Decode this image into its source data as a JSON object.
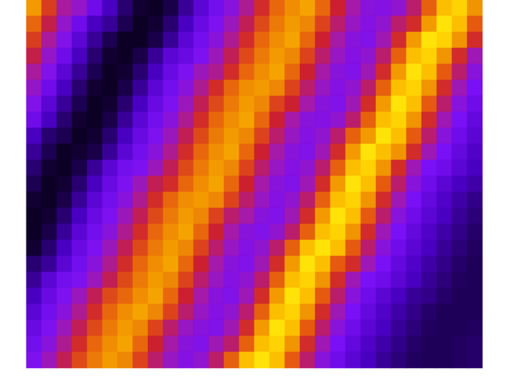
{
  "chart_data": {
    "type": "heatmap",
    "tick_labels": false,
    "color_range": [
      0,
      1
    ],
    "cells": [
      [
        0.8,
        0.65,
        0.51,
        0.45,
        0.35,
        0.25,
        0.15,
        0.07,
        0.05,
        0.1,
        0.2,
        0.3,
        0.36,
        0.42,
        0.52,
        0.62,
        0.72,
        0.78,
        0.82,
        0.72,
        0.6,
        0.5,
        0.42,
        0.41,
        0.44,
        0.55,
        0.71,
        0.88,
        0.92,
        0.79
      ],
      [
        0.72,
        0.58,
        0.45,
        0.35,
        0.25,
        0.2,
        0.11,
        0.05,
        0.07,
        0.15,
        0.25,
        0.33,
        0.39,
        0.47,
        0.57,
        0.67,
        0.75,
        0.8,
        0.77,
        0.66,
        0.55,
        0.46,
        0.41,
        0.44,
        0.55,
        0.62,
        0.8,
        0.95,
        0.88,
        0.7
      ],
      [
        0.65,
        0.51,
        0.4,
        0.3,
        0.2,
        0.11,
        0.05,
        0.05,
        0.1,
        0.2,
        0.3,
        0.36,
        0.42,
        0.52,
        0.62,
        0.72,
        0.78,
        0.82,
        0.72,
        0.6,
        0.5,
        0.42,
        0.4,
        0.48,
        0.62,
        0.8,
        0.95,
        0.92,
        0.79,
        0.62
      ],
      [
        0.58,
        0.45,
        0.35,
        0.25,
        0.15,
        0.07,
        0.05,
        0.1,
        0.2,
        0.3,
        0.33,
        0.39,
        0.47,
        0.57,
        0.67,
        0.75,
        0.8,
        0.77,
        0.66,
        0.55,
        0.46,
        0.41,
        0.44,
        0.55,
        0.71,
        0.88,
        0.92,
        0.79,
        0.62,
        0.48
      ],
      [
        0.51,
        0.4,
        0.3,
        0.2,
        0.11,
        0.05,
        0.07,
        0.15,
        0.25,
        0.33,
        0.39,
        0.47,
        0.52,
        0.62,
        0.72,
        0.78,
        0.82,
        0.72,
        0.6,
        0.5,
        0.42,
        0.4,
        0.48,
        0.62,
        0.8,
        0.95,
        0.88,
        0.7,
        0.55,
        0.42
      ],
      [
        0.45,
        0.35,
        0.25,
        0.15,
        0.07,
        0.05,
        0.1,
        0.2,
        0.3,
        0.36,
        0.42,
        0.52,
        0.62,
        0.72,
        0.78,
        0.8,
        0.77,
        0.66,
        0.55,
        0.46,
        0.41,
        0.44,
        0.55,
        0.71,
        0.88,
        0.92,
        0.79,
        0.62,
        0.48,
        0.38
      ],
      [
        0.4,
        0.3,
        0.2,
        0.11,
        0.05,
        0.07,
        0.15,
        0.25,
        0.33,
        0.39,
        0.47,
        0.57,
        0.67,
        0.75,
        0.8,
        0.77,
        0.66,
        0.6,
        0.5,
        0.42,
        0.4,
        0.48,
        0.62,
        0.8,
        0.95,
        0.88,
        0.7,
        0.55,
        0.42,
        0.35
      ],
      [
        0.35,
        0.25,
        0.15,
        0.07,
        0.05,
        0.1,
        0.2,
        0.3,
        0.36,
        0.42,
        0.52,
        0.62,
        0.72,
        0.78,
        0.82,
        0.72,
        0.6,
        0.5,
        0.42,
        0.41,
        0.44,
        0.55,
        0.71,
        0.88,
        0.92,
        0.79,
        0.62,
        0.48,
        0.38,
        0.32
      ],
      [
        0.25,
        0.15,
        0.11,
        0.05,
        0.07,
        0.15,
        0.25,
        0.33,
        0.39,
        0.47,
        0.57,
        0.67,
        0.75,
        0.8,
        0.77,
        0.66,
        0.55,
        0.46,
        0.41,
        0.44,
        0.55,
        0.71,
        0.8,
        0.95,
        0.88,
        0.7,
        0.55,
        0.42,
        0.35,
        0.3
      ],
      [
        0.2,
        0.11,
        0.05,
        0.07,
        0.1,
        0.2,
        0.3,
        0.36,
        0.42,
        0.52,
        0.62,
        0.72,
        0.78,
        0.82,
        0.72,
        0.6,
        0.5,
        0.42,
        0.4,
        0.48,
        0.62,
        0.8,
        0.95,
        0.88,
        0.79,
        0.62,
        0.48,
        0.38,
        0.32,
        0.27
      ],
      [
        0.15,
        0.07,
        0.05,
        0.1,
        0.2,
        0.3,
        0.36,
        0.39,
        0.47,
        0.57,
        0.67,
        0.75,
        0.8,
        0.77,
        0.66,
        0.55,
        0.46,
        0.41,
        0.44,
        0.55,
        0.71,
        0.88,
        0.92,
        0.79,
        0.62,
        0.48,
        0.38,
        0.35,
        0.3,
        0.25
      ],
      [
        0.11,
        0.05,
        0.07,
        0.15,
        0.25,
        0.33,
        0.39,
        0.47,
        0.57,
        0.62,
        0.72,
        0.78,
        0.82,
        0.72,
        0.6,
        0.5,
        0.42,
        0.4,
        0.48,
        0.62,
        0.8,
        0.95,
        0.88,
        0.7,
        0.55,
        0.42,
        0.35,
        0.3,
        0.25,
        0.22
      ],
      [
        0.07,
        0.05,
        0.1,
        0.2,
        0.3,
        0.36,
        0.42,
        0.52,
        0.62,
        0.72,
        0.78,
        0.8,
        0.77,
        0.66,
        0.55,
        0.46,
        0.41,
        0.44,
        0.55,
        0.71,
        0.88,
        0.92,
        0.79,
        0.62,
        0.48,
        0.38,
        0.32,
        0.27,
        0.22,
        0.18
      ],
      [
        0.05,
        0.07,
        0.15,
        0.25,
        0.33,
        0.39,
        0.47,
        0.57,
        0.67,
        0.75,
        0.8,
        0.77,
        0.66,
        0.55,
        0.5,
        0.42,
        0.4,
        0.48,
        0.62,
        0.8,
        0.95,
        0.88,
        0.7,
        0.55,
        0.42,
        0.35,
        0.3,
        0.25,
        0.2,
        0.16
      ],
      [
        0.05,
        0.1,
        0.2,
        0.3,
        0.36,
        0.42,
        0.52,
        0.62,
        0.72,
        0.78,
        0.82,
        0.72,
        0.6,
        0.5,
        0.42,
        0.4,
        0.44,
        0.55,
        0.71,
        0.88,
        0.92,
        0.79,
        0.62,
        0.48,
        0.38,
        0.32,
        0.27,
        0.22,
        0.18,
        0.14
      ],
      [
        0.07,
        0.15,
        0.25,
        0.33,
        0.39,
        0.47,
        0.57,
        0.67,
        0.75,
        0.8,
        0.77,
        0.66,
        0.55,
        0.46,
        0.41,
        0.44,
        0.55,
        0.71,
        0.88,
        0.95,
        0.88,
        0.7,
        0.55,
        0.42,
        0.35,
        0.3,
        0.25,
        0.2,
        0.16,
        0.13
      ],
      [
        0.15,
        0.2,
        0.3,
        0.36,
        0.42,
        0.52,
        0.62,
        0.72,
        0.78,
        0.82,
        0.72,
        0.6,
        0.5,
        0.42,
        0.4,
        0.48,
        0.62,
        0.8,
        0.95,
        0.88,
        0.7,
        0.62,
        0.48,
        0.38,
        0.32,
        0.27,
        0.22,
        0.18,
        0.14,
        0.12
      ],
      [
        0.2,
        0.3,
        0.36,
        0.39,
        0.47,
        0.57,
        0.67,
        0.75,
        0.8,
        0.77,
        0.66,
        0.55,
        0.46,
        0.41,
        0.44,
        0.55,
        0.71,
        0.88,
        0.92,
        0.79,
        0.62,
        0.48,
        0.38,
        0.35,
        0.3,
        0.25,
        0.2,
        0.16,
        0.13,
        0.12
      ],
      [
        0.25,
        0.33,
        0.39,
        0.47,
        0.57,
        0.67,
        0.72,
        0.78,
        0.82,
        0.72,
        0.6,
        0.5,
        0.42,
        0.4,
        0.48,
        0.62,
        0.8,
        0.95,
        0.88,
        0.7,
        0.55,
        0.42,
        0.35,
        0.3,
        0.25,
        0.2,
        0.18,
        0.14,
        0.12,
        0.12
      ],
      [
        0.3,
        0.36,
        0.42,
        0.52,
        0.62,
        0.72,
        0.78,
        0.82,
        0.77,
        0.66,
        0.55,
        0.46,
        0.41,
        0.44,
        0.55,
        0.71,
        0.88,
        0.92,
        0.79,
        0.62,
        0.48,
        0.38,
        0.32,
        0.27,
        0.22,
        0.18,
        0.14,
        0.12,
        0.12,
        0.12
      ],
      [
        0.33,
        0.39,
        0.47,
        0.57,
        0.67,
        0.75,
        0.8,
        0.77,
        0.66,
        0.55,
        0.46,
        0.42,
        0.4,
        0.48,
        0.62,
        0.8,
        0.95,
        0.88,
        0.7,
        0.55,
        0.42,
        0.35,
        0.3,
        0.25,
        0.2,
        0.16,
        0.13,
        0.12,
        0.12,
        0.13
      ],
      [
        0.36,
        0.42,
        0.52,
        0.62,
        0.72,
        0.78,
        0.82,
        0.72,
        0.6,
        0.5,
        0.42,
        0.4,
        0.48,
        0.55,
        0.71,
        0.88,
        0.92,
        0.79,
        0.62,
        0.48,
        0.38,
        0.32,
        0.27,
        0.22,
        0.18,
        0.14,
        0.12,
        0.12,
        0.13,
        0.14
      ],
      [
        0.39,
        0.47,
        0.57,
        0.67,
        0.75,
        0.8,
        0.77,
        0.66,
        0.55,
        0.46,
        0.41,
        0.44,
        0.55,
        0.71,
        0.88,
        0.95,
        0.88,
        0.7,
        0.55,
        0.42,
        0.35,
        0.3,
        0.25,
        0.2,
        0.16,
        0.13,
        0.12,
        0.12,
        0.13,
        0.14
      ]
    ]
  }
}
